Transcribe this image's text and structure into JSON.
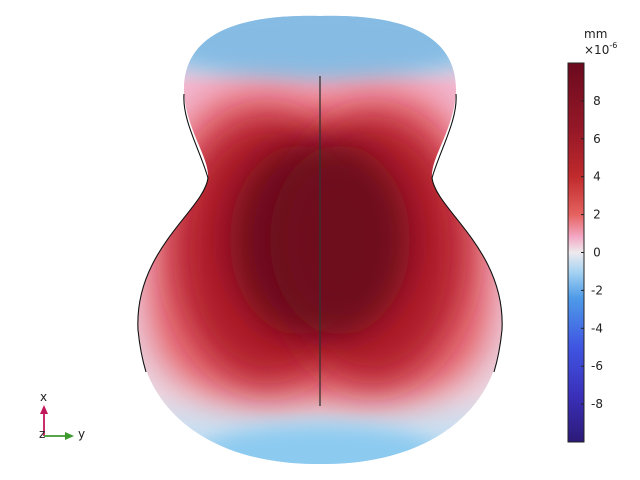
{
  "colorbar": {
    "unit": "mm",
    "scale_base": "×10",
    "scale_exponent": "-6",
    "range": [
      -10,
      10
    ],
    "ticks": [
      "8",
      "6",
      "4",
      "2",
      "0",
      "-2",
      "-4",
      "-6",
      "-8"
    ],
    "tick_values": [
      8,
      6,
      4,
      2,
      0,
      -2,
      -4,
      -6,
      -8
    ]
  },
  "triad": {
    "x_label": "x",
    "y_label": "y",
    "z_label": "z",
    "colors": {
      "x": "#c2185b",
      "y": "#3c9a2f"
    }
  },
  "colors": {
    "max": "#6e0c1f",
    "high": "#b01e2a",
    "mid_high": "#e45a5a",
    "zero": "#e8e4ea",
    "low": "#7fbce6",
    "min": "#2d1a8a"
  }
}
